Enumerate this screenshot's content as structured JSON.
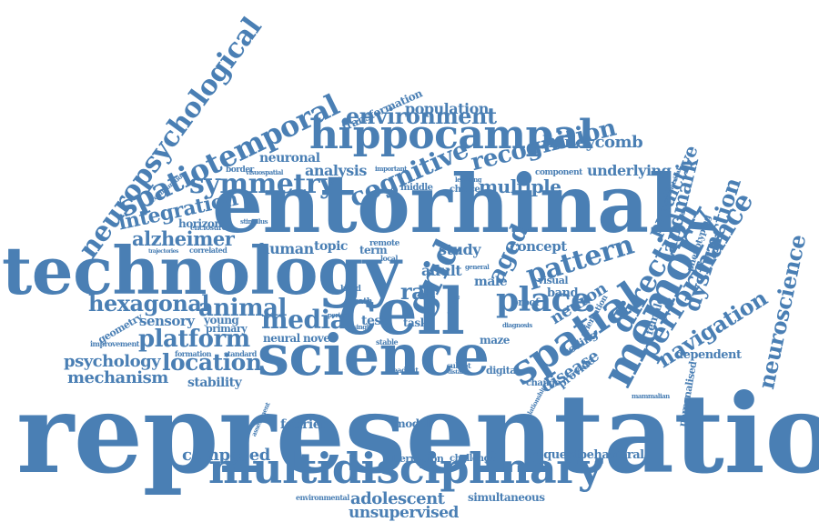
{
  "cloud": {
    "color": "#4a7fb4",
    "words": [
      {
        "key": "representation",
        "text": "representation"
      },
      {
        "key": "entorhinal",
        "text": "entorhinal"
      },
      {
        "key": "technology",
        "text": "technology"
      },
      {
        "key": "science",
        "text": "science"
      },
      {
        "key": "cell",
        "text": "cell"
      },
      {
        "key": "multidisciplinary",
        "text": "multidisciplinary"
      },
      {
        "key": "hippocampal",
        "text": "hippocampal"
      },
      {
        "key": "spatiotemporal",
        "text": "spatiotemporal"
      },
      {
        "key": "neuropsychological",
        "text": "neuropsychological"
      },
      {
        "key": "memory",
        "text": "memory"
      },
      {
        "key": "spatial",
        "text": "spatial"
      },
      {
        "key": "grid",
        "text": "grid"
      },
      {
        "key": "place",
        "text": "place"
      },
      {
        "key": "cognitive",
        "text": "cognitive"
      },
      {
        "key": "symmetry",
        "text": "symmetry"
      },
      {
        "key": "environment",
        "text": "environment"
      },
      {
        "key": "recognition",
        "text": "recognition"
      },
      {
        "key": "performance",
        "text": "performance"
      },
      {
        "key": "pattern",
        "text": "pattern"
      },
      {
        "key": "direction",
        "text": "direction"
      },
      {
        "key": "platform",
        "text": "platform"
      },
      {
        "key": "location",
        "text": "location"
      },
      {
        "key": "medial",
        "text": "medial"
      },
      {
        "key": "animal",
        "text": "animal"
      },
      {
        "key": "hexagonal",
        "text": "hexagonal"
      },
      {
        "key": "integration",
        "text": "integration"
      },
      {
        "key": "alzheimer",
        "text": "alzheimer"
      },
      {
        "key": "navigation",
        "text": "navigation"
      },
      {
        "key": "neuroscience",
        "text": "neuroscience"
      },
      {
        "key": "dysfunction",
        "text": "dysfunction"
      },
      {
        "key": "landmark",
        "text": "landmark"
      },
      {
        "key": "predictive",
        "text": "predictive"
      },
      {
        "key": "honeycomb",
        "text": "honeycomb"
      },
      {
        "key": "population",
        "text": "population"
      },
      {
        "key": "multiple",
        "text": "multiple"
      },
      {
        "key": "underlying",
        "text": "underlying"
      },
      {
        "key": "psychology",
        "text": "psychology"
      },
      {
        "key": "mechanism",
        "text": "mechanism"
      },
      {
        "key": "composed",
        "text": "composed"
      },
      {
        "key": "adolescent",
        "text": "adolescent"
      },
      {
        "key": "unsupervised",
        "text": "unsupervised"
      },
      {
        "key": "aged",
        "text": "aged"
      },
      {
        "key": "neuron",
        "text": "neuron"
      },
      {
        "key": "disease",
        "text": "disease"
      },
      {
        "key": "rat",
        "text": "rat"
      },
      {
        "key": "human",
        "text": "human"
      },
      {
        "key": "analysis",
        "text": "analysis"
      },
      {
        "key": "neuronal",
        "text": "neuronal"
      },
      {
        "key": "topic",
        "text": "topic"
      },
      {
        "key": "term",
        "text": "term"
      },
      {
        "key": "study",
        "text": "study"
      },
      {
        "key": "adult",
        "text": "adult"
      },
      {
        "key": "male",
        "text": "male"
      },
      {
        "key": "concept",
        "text": "concept"
      },
      {
        "key": "band",
        "text": "band"
      },
      {
        "key": "visual",
        "text": "visual"
      },
      {
        "key": "proof",
        "text": "proof"
      },
      {
        "key": "sensory",
        "text": "sensory"
      },
      {
        "key": "young",
        "text": "young"
      },
      {
        "key": "primary",
        "text": "primary"
      },
      {
        "key": "neural",
        "text": "neural"
      },
      {
        "key": "novel",
        "text": "novel"
      },
      {
        "key": "test",
        "text": "test"
      },
      {
        "key": "task",
        "text": "task"
      },
      {
        "key": "maze",
        "text": "maze"
      },
      {
        "key": "stability",
        "text": "stability"
      },
      {
        "key": "fourier",
        "text": "fourier"
      },
      {
        "key": "model",
        "text": "model"
      },
      {
        "key": "alternation",
        "text": "alternation"
      },
      {
        "key": "challenge",
        "text": "challenge"
      },
      {
        "key": "frequent",
        "text": "frequent"
      },
      {
        "key": "behavioral",
        "text": "behavioral"
      },
      {
        "key": "simultaneous",
        "text": "simultaneous"
      },
      {
        "key": "environmental",
        "text": "environmental"
      },
      {
        "key": "dependent",
        "text": "dependent"
      },
      {
        "key": "personalised",
        "text": "personalised"
      },
      {
        "key": "female",
        "text": "female"
      },
      {
        "key": "provide",
        "text": "provide"
      },
      {
        "key": "coding",
        "text": "coding"
      },
      {
        "key": "digital",
        "text": "digital"
      },
      {
        "key": "change",
        "text": "change"
      },
      {
        "key": "mammalian",
        "text": "mammalian"
      },
      {
        "key": "geometry",
        "text": "geometry"
      },
      {
        "key": "improvement",
        "text": "improvement"
      },
      {
        "key": "formation",
        "text": "formation"
      },
      {
        "key": "standard",
        "text": "standard"
      },
      {
        "key": "correlated",
        "text": "correlated"
      },
      {
        "key": "trajectories",
        "text": "trajectories"
      },
      {
        "key": "horizon",
        "text": "horizon"
      },
      {
        "key": "enclosure",
        "text": "enclosure"
      },
      {
        "key": "stimulus",
        "text": "stimulus"
      },
      {
        "key": "configuration",
        "text": "configuration"
      },
      {
        "key": "border",
        "text": "border"
      },
      {
        "key": "visuospatial",
        "text": "visuospatial"
      },
      {
        "key": "transformation",
        "text": "transformation"
      },
      {
        "key": "middle",
        "text": "middle"
      },
      {
        "key": "choice",
        "text": "choice"
      },
      {
        "key": "learning",
        "text": "learning"
      },
      {
        "key": "component",
        "text": "component"
      },
      {
        "key": "phenotyping",
        "text": "phenotyping"
      },
      {
        "key": "symmetrical",
        "text": "symmetrical"
      },
      {
        "key": "orientation",
        "text": "orientation"
      },
      {
        "key": "head",
        "text": "head"
      },
      {
        "key": "path",
        "text": "path"
      },
      {
        "key": "remote",
        "text": "remote"
      },
      {
        "key": "local",
        "text": "local"
      },
      {
        "key": "stable",
        "text": "stable"
      },
      {
        "key": "subset",
        "text": "subset"
      },
      {
        "key": "distance",
        "text": "distance"
      },
      {
        "key": "readout",
        "text": "readout"
      },
      {
        "key": "assessment",
        "text": "assessment"
      },
      {
        "key": "important",
        "text": "important"
      },
      {
        "key": "general",
        "text": "general"
      },
      {
        "key": "diagnosis",
        "text": "diagnosis"
      },
      {
        "key": "time",
        "text": "time"
      },
      {
        "key": "period",
        "text": "period"
      },
      {
        "key": "single",
        "text": "single"
      },
      {
        "key": "relationship",
        "text": "relationship"
      }
    ]
  }
}
